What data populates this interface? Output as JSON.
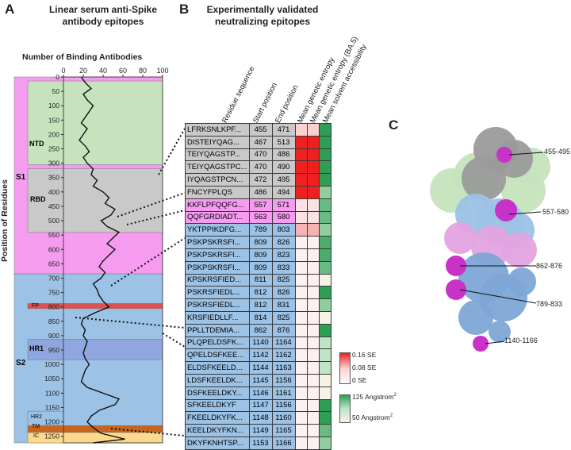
{
  "panelA": {
    "letter": "A",
    "title_line1": "Linear serum anti-Spike",
    "title_line2": "antibody epitopes",
    "xaxis_title": "Number of Binding Antibodies",
    "yaxis_title": "Position of Residues",
    "domains": [
      {
        "label": "S1",
        "color": "#f59cf0"
      },
      {
        "label": "NTD",
        "color": "#c5e4bd"
      },
      {
        "label": "RBD",
        "color": "#c9c9c9"
      },
      {
        "label": "S2",
        "color": "#9cc2e5"
      },
      {
        "label": "FP",
        "color": "#e05050"
      },
      {
        "label": "HR1",
        "color": "#8fa6e0"
      },
      {
        "label": "HR2",
        "color": "#9cc2e5"
      },
      {
        "label": "TM",
        "color": "#c8641e"
      },
      {
        "label": "IC",
        "color": "#fcd98c"
      }
    ]
  },
  "chart_data": {
    "type": "line",
    "orientation": "horizontal",
    "x_label": "Number of Binding Antibodies",
    "y_label": "Position of Residues",
    "xlim": [
      0,
      100
    ],
    "ylim": [
      0,
      1273
    ],
    "x_ticks": [
      "0",
      "20",
      "40",
      "60",
      "80",
      "100"
    ],
    "y_ticks": [
      "0",
      "50",
      "100",
      "150",
      "200",
      "250",
      "300",
      "350",
      "400",
      "450",
      "500",
      "550",
      "600",
      "650",
      "700",
      "750",
      "800",
      "850",
      "900",
      "950",
      "1000",
      "1050",
      "1100",
      "1150",
      "1200",
      "1250"
    ],
    "residue": [
      0,
      20,
      40,
      60,
      80,
      100,
      120,
      140,
      160,
      180,
      200,
      220,
      240,
      260,
      280,
      300,
      320,
      340,
      360,
      380,
      400,
      420,
      440,
      460,
      480,
      500,
      520,
      540,
      560,
      580,
      600,
      620,
      640,
      660,
      680,
      700,
      720,
      740,
      760,
      780,
      800,
      820,
      840,
      860,
      880,
      900,
      920,
      940,
      960,
      980,
      1000,
      1020,
      1040,
      1060,
      1080,
      1100,
      1120,
      1140,
      1160,
      1180,
      1200,
      1220,
      1240,
      1260,
      1273
    ],
    "binding": [
      18,
      22,
      28,
      20,
      24,
      30,
      26,
      22,
      18,
      24,
      20,
      16,
      22,
      26,
      20,
      24,
      30,
      28,
      34,
      30,
      40,
      46,
      42,
      52,
      48,
      38,
      44,
      56,
      50,
      44,
      52,
      46,
      40,
      36,
      42,
      38,
      30,
      34,
      36,
      40,
      46,
      32,
      20,
      18,
      22,
      20,
      24,
      22,
      20,
      22,
      26,
      22,
      20,
      18,
      24,
      40,
      56,
      52,
      36,
      28,
      24,
      30,
      38,
      62,
      30
    ]
  },
  "panelB": {
    "letter": "B",
    "title_line1": "Experimentally validated",
    "title_line2": "neutralizing epitopes",
    "columns": [
      "Residue sequence",
      "Start position",
      "End position",
      "Mean genetic entropy",
      "Mean genetic entropy (BA.5)",
      "Mean solvent accessibility"
    ],
    "rows": [
      {
        "seq": "LFRKSNLKPF...",
        "start": "455",
        "end": "471",
        "color": "#c9c9c9",
        "e1": "#fbd0d0",
        "e2": "#fbd0d0",
        "sa": "#2e9e55"
      },
      {
        "seq": "DISTEIYQAG...",
        "start": "467",
        "end": "513",
        "color": "#c9c9c9",
        "e1": "#ee2020",
        "e2": "#ee2020",
        "sa": "#2e9e55"
      },
      {
        "seq": "TEIYQAGSTP...",
        "start": "470",
        "end": "486",
        "color": "#c9c9c9",
        "e1": "#ee2020",
        "e2": "#ee2020",
        "sa": "#2e9e55"
      },
      {
        "seq": "TEIYQAGSTPC...",
        "start": "470",
        "end": "490",
        "color": "#c9c9c9",
        "e1": "#ee2020",
        "e2": "#ee2020",
        "sa": "#2e9e55"
      },
      {
        "seq": "IYQAGSTPCN...",
        "start": "472",
        "end": "495",
        "color": "#c9c9c9",
        "e1": "#ee2020",
        "e2": "#ee2020",
        "sa": "#2e9e55"
      },
      {
        "seq": "FNCYFPLQS",
        "start": "486",
        "end": "494",
        "color": "#c9c9c9",
        "e1": "#ee2020",
        "e2": "#ee2020",
        "sa": "#8fcf9f"
      },
      {
        "seq": "KKFLPFQQFG...",
        "start": "557",
        "end": "571",
        "color": "#f59cf0",
        "e1": "#fbe2e2",
        "e2": "#fbe2e2",
        "sa": "#68bb84"
      },
      {
        "seq": "QQFGRDIADT...",
        "start": "563",
        "end": "580",
        "color": "#f59cf0",
        "e1": "#fbe2e2",
        "e2": "#fbe2e2",
        "sa": "#68bb84"
      },
      {
        "seq": "YKTPPIKDFG...",
        "start": "789",
        "end": "803",
        "color": "#9cc2e5",
        "e1": "#f6b3b3",
        "e2": "#f6b3b3",
        "sa": "#8fcf9f"
      },
      {
        "seq": "PSKPSKRSFI...",
        "start": "809",
        "end": "826",
        "color": "#9cc2e5",
        "e1": "#fdf0f0",
        "e2": "#fdf0f0",
        "sa": "#4aad6c"
      },
      {
        "seq": "PSKPSKRSFI...",
        "start": "809",
        "end": "823",
        "color": "#9cc2e5",
        "e1": "#fdf0f0",
        "e2": "#fdf0f0",
        "sa": "#4aad6c"
      },
      {
        "seq": "PSKPSKRSFI...",
        "start": "809",
        "end": "833",
        "color": "#9cc2e5",
        "e1": "#fdf0f0",
        "e2": "#fdf0f0",
        "sa": "#68bb84"
      },
      {
        "seq": "KPSKRSFIED...",
        "start": "811",
        "end": "825",
        "color": "#9cc2e5",
        "e1": "#fdf0f0",
        "e2": "#fdf0f0",
        "sa": "#f5f3e6"
      },
      {
        "seq": "PSKRSFIEDL...",
        "start": "812",
        "end": "826",
        "color": "#9cc2e5",
        "e1": "#fdf0f0",
        "e2": "#fdf0f0",
        "sa": "#2e9e55"
      },
      {
        "seq": "PSKRSFIEDL...",
        "start": "812",
        "end": "831",
        "color": "#9cc2e5",
        "e1": "#fdf0f0",
        "e2": "#fdf0f0",
        "sa": "#8fcf9f"
      },
      {
        "seq": "KRSFIEDLLF...",
        "start": "814",
        "end": "825",
        "color": "#9cc2e5",
        "e1": "#fdf0f0",
        "e2": "#fdf0f0",
        "sa": "#f5f3e6"
      },
      {
        "seq": "PPLLTDEMIA...",
        "start": "862",
        "end": "876",
        "color": "#9cc2e5",
        "e1": "#fdf0f0",
        "e2": "#fdf0f0",
        "sa": "#2e9e55"
      },
      {
        "seq": "PLQPELDSFK...",
        "start": "1140",
        "end": "1164",
        "color": "#9cc2e5",
        "e1": "#fdf0f0",
        "e2": "#fdf0f0",
        "sa": "#bfe4c8"
      },
      {
        "seq": "QPELDSFKEE...",
        "start": "1142",
        "end": "1162",
        "color": "#9cc2e5",
        "e1": "#fdf0f0",
        "e2": "#fdf0f0",
        "sa": "#bfe4c8"
      },
      {
        "seq": "ELDSFKEELD...",
        "start": "1144",
        "end": "1163",
        "color": "#9cc2e5",
        "e1": "#fdf0f0",
        "e2": "#fdf0f0",
        "sa": "#bfe4c8"
      },
      {
        "seq": "LDSFKEELDK...",
        "start": "1145",
        "end": "1156",
        "color": "#9cc2e5",
        "e1": "#fdf0f0",
        "e2": "#fdf0f0",
        "sa": "#f5f3e6"
      },
      {
        "seq": "DSFKEELDKY...",
        "start": "1146",
        "end": "1161",
        "color": "#9cc2e5",
        "e1": "#fdf0f0",
        "e2": "#fdf0f0",
        "sa": "#f5f3e6"
      },
      {
        "seq": "SFKEELDKYF",
        "start": "1147",
        "end": "1156",
        "color": "#9cc2e5",
        "e1": "#fdf0f0",
        "e2": "#fdf0f0",
        "sa": "#2e9e55"
      },
      {
        "seq": "FKEELDKYFK...",
        "start": "1148",
        "end": "1160",
        "color": "#9cc2e5",
        "e1": "#fdf0f0",
        "e2": "#fdf0f0",
        "sa": "#2e9e55"
      },
      {
        "seq": "KEELDKYFKN...",
        "start": "1149",
        "end": "1165",
        "color": "#9cc2e5",
        "e1": "#fdf0f0",
        "e2": "#fdf0f0",
        "sa": "#68bb84"
      },
      {
        "seq": "DKYFKNHTSP...",
        "start": "1153",
        "end": "1166",
        "color": "#9cc2e5",
        "e1": "#fdf0f0",
        "e2": "#fdf0f0",
        "sa": "#8fcf9f"
      }
    ],
    "legend_entropy": [
      "0.16 SE",
      "0.08 SE",
      "0 SE"
    ],
    "legend_access": [
      "125 Angstrom",
      "50 Angstrom"
    ],
    "legend_sup": "2"
  },
  "panelC": {
    "letter": "C",
    "labels": [
      "455-495",
      "557-580",
      "862-876",
      "789-833",
      "1140-1166"
    ]
  }
}
